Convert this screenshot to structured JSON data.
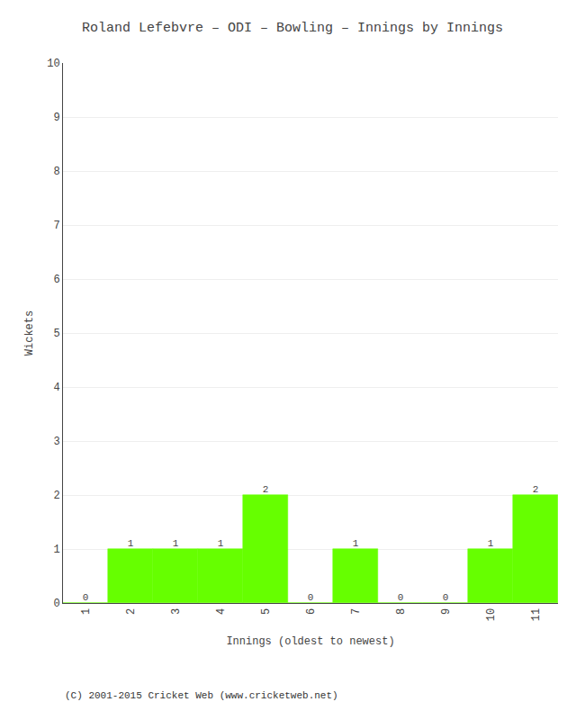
{
  "chart_data": {
    "type": "bar",
    "title": "Roland Lefebvre – ODI – Bowling – Innings by Innings",
    "xlabel": "Innings (oldest to newest)",
    "ylabel": "Wickets",
    "x": [
      1,
      2,
      3,
      4,
      5,
      6,
      7,
      8,
      9,
      10,
      11
    ],
    "values": [
      0,
      1,
      1,
      1,
      2,
      0,
      1,
      0,
      0,
      1,
      2
    ],
    "color": "#66ff00",
    "xlim": [
      0.5,
      11.5
    ],
    "xticks": [
      1,
      2,
      3,
      4,
      5,
      6,
      7,
      8,
      9,
      10,
      11
    ],
    "ylim": [
      0,
      10
    ],
    "yticks": [
      0,
      1,
      2,
      3,
      4,
      5,
      6,
      7,
      8,
      9,
      10
    ],
    "grid": true,
    "data_labels": true,
    "annotations": [
      "(C) 2001-2015 Cricket Web (www.cricketweb.net)"
    ]
  }
}
